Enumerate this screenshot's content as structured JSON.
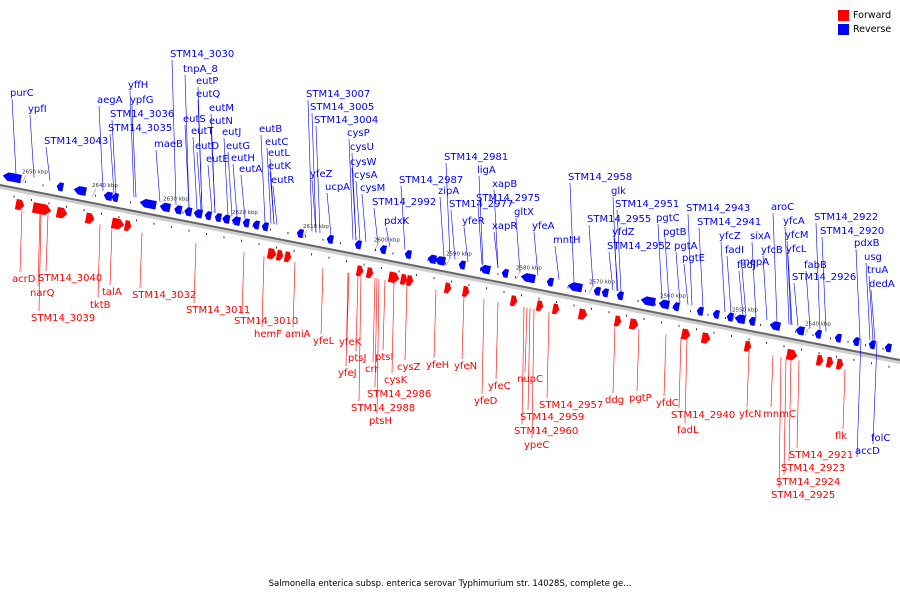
{
  "legend": {
    "forward_label": "Forward",
    "reverse_label": "Reverse",
    "forward_color": "#ff0000",
    "reverse_color": "#0000ff"
  },
  "caption": "Salmonella enterica subsp. enterica serovar Typhimurium str. 14028S, complete ge...",
  "scale_ticks": [
    "2650 kbp",
    "2640 kbp",
    "2630 kbp",
    "2620 kbp",
    "2610 kbp",
    "2600 kbp",
    "2590 kbp",
    "2580 kbp",
    "2570 kbp",
    "2560 kbp",
    "2550 kbp",
    "2540 kbp"
  ],
  "reverse_genes": [
    "purC",
    "ypfI",
    "STM14_3043",
    "aegA",
    "yffH",
    "ypfG",
    "STM14_3036",
    "STM14_3035",
    "maeB",
    "STM14_3030",
    "tnpA_8",
    "eutP",
    "eutQ",
    "eutS",
    "eutM",
    "eutN",
    "eutT",
    "eutJ",
    "eutD",
    "eutE",
    "eutG",
    "eutH",
    "eutA",
    "eutB",
    "eutC",
    "eutL",
    "eutK",
    "eutR",
    "STM14_3007",
    "STM14_3005",
    "STM14_3004",
    "yfeZ",
    "ucpA",
    "cysP",
    "cysU",
    "cysW",
    "cysA",
    "cysM",
    "STM14_2992",
    "pdxK",
    "STM14_2987",
    "zipA",
    "STM14_2981",
    "STM14_2977",
    "ligA",
    "yfeR",
    "xapB",
    "STM14_2975",
    "xapR",
    "gltX",
    "yfeA",
    "mntH",
    "STM14_2958",
    "glk",
    "STM14_2955",
    "yfdZ",
    "STM14_2952",
    "STM14_2951",
    "pgtC",
    "pgtB",
    "pgtA",
    "pgtE",
    "STM14_2943",
    "STM14_2941",
    "yfcZ",
    "fadI",
    "fadJ",
    "aroC",
    "yfcA",
    "sixA",
    "yfcM",
    "yfcB",
    "mepA",
    "yfcL",
    "fabB",
    "STM14_2926",
    "STM14_2922",
    "STM14_2920",
    "pdxB",
    "usg",
    "truA",
    "dedA",
    "folC",
    "accD"
  ],
  "forward_genes": [
    "acrD",
    "STM14_3040",
    "narQ",
    "STM14_3039",
    "talA",
    "tktB",
    "STM14_3032",
    "STM14_3011",
    "STM14_3010",
    "hemF",
    "amiA",
    "yfeL",
    "yfeK",
    "ptsJ",
    "yfeJ",
    "crr",
    "ptsI",
    "cysZ",
    "cysK",
    "STM14_2986",
    "STM14_2988",
    "ptsH",
    "yfeH",
    "yfeN",
    "yfeC",
    "yfeD",
    "nupC",
    "STM14_2957",
    "STM14_2959",
    "STM14_2960",
    "ypeC",
    "ddg",
    "pgtP",
    "yfdC",
    "STM14_2940",
    "fadL",
    "yfcN",
    "mnmC",
    "flk",
    "STM14_2921",
    "STM14_2923",
    "STM14_2924",
    "STM14_2925"
  ]
}
